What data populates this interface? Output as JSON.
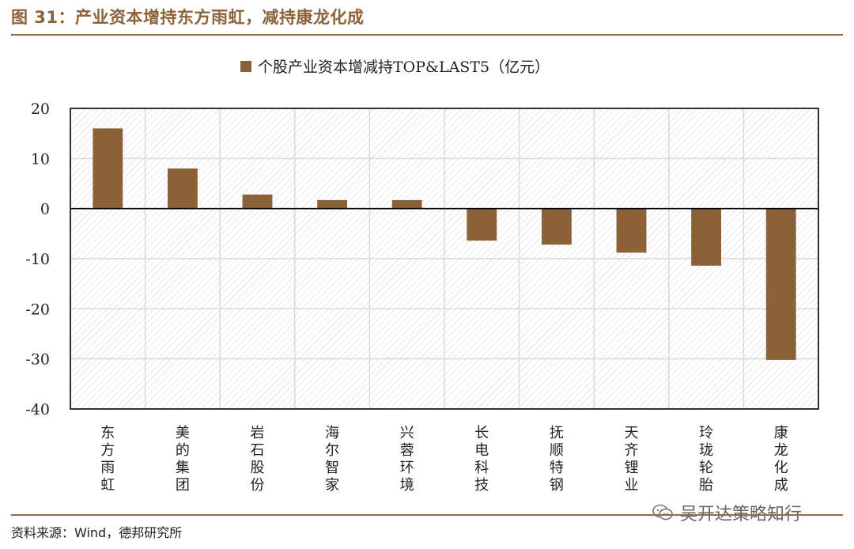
{
  "header": {
    "title": "图 31：产业资本增持东方雨虹，减持康龙化成"
  },
  "footer": {
    "source": "资料来源：Wind，德邦研究所"
  },
  "watermark": {
    "text": "吴开达策略知行"
  },
  "colors": {
    "bar": "#8B6238",
    "accent": "#9b6b43",
    "grid": "#d9d9d9"
  },
  "chart_data": {
    "type": "bar",
    "title": "",
    "legend": [
      "个股产业资本增减持TOP&LAST5（亿元）"
    ],
    "legend_position": "top-center",
    "categories": [
      "东方雨虹",
      "美的集团",
      "岩石股份",
      "海尔智家",
      "兴蓉环境",
      "长电科技",
      "抚顺特钢",
      "天齐锂业",
      "玲珑轮胎",
      "康龙化成"
    ],
    "series": [
      {
        "name": "个股产业资本增减持TOP&LAST5（亿元）",
        "values": [
          16.0,
          8.0,
          2.8,
          1.7,
          1.7,
          -6.4,
          -7.2,
          -8.8,
          -11.4,
          -30.2
        ]
      }
    ],
    "ylim": [
      -40,
      20
    ],
    "yticks": [
      20,
      10,
      0,
      -10,
      -20,
      -30,
      -40
    ],
    "grid": true,
    "xlabel": "",
    "ylabel": ""
  }
}
